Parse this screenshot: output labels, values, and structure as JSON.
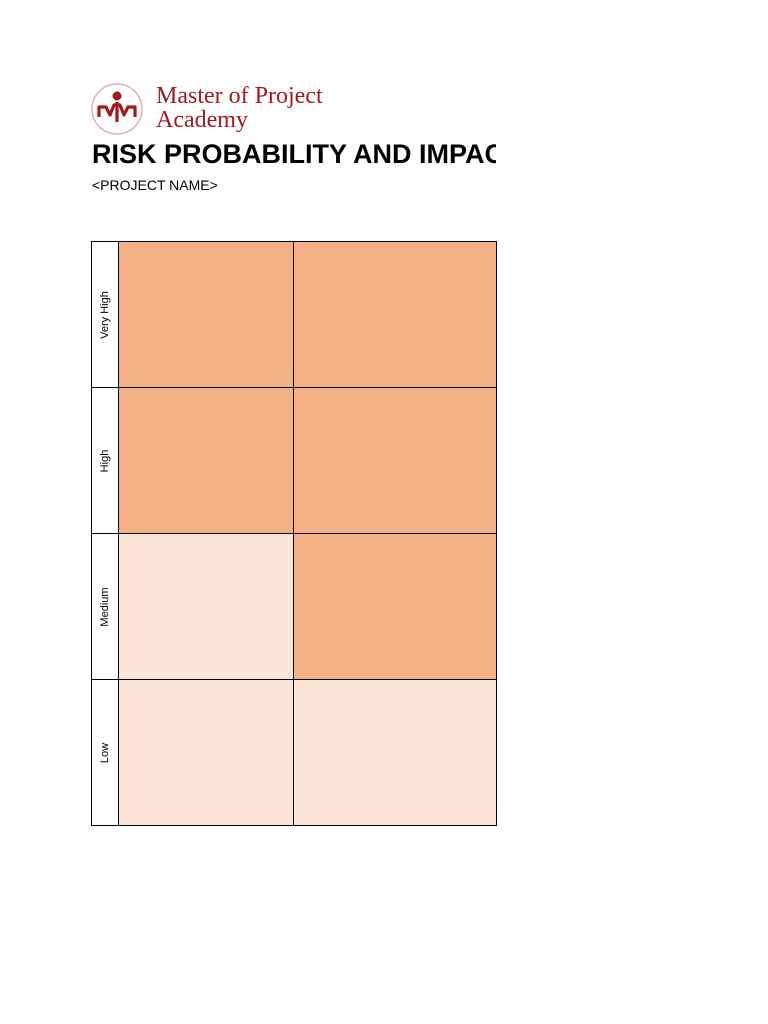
{
  "logo": {
    "line1": "Master of Project",
    "line2": "Academy",
    "brand_color": "#a3191d"
  },
  "title": "RISK PROBABILITY AND IMPACT",
  "subtitle": "<PROJECT NAME>",
  "matrix": {
    "rows": [
      {
        "label": "Very High",
        "cells": [
          "dark",
          "dark"
        ]
      },
      {
        "label": "High",
        "cells": [
          "dark",
          "dark"
        ]
      },
      {
        "label": "Medium",
        "cells": [
          "light",
          "dark"
        ]
      },
      {
        "label": "Low",
        "cells": [
          "light",
          "light"
        ]
      }
    ],
    "colors": {
      "dark": "#f3b185",
      "light": "#fbe5d7"
    }
  }
}
